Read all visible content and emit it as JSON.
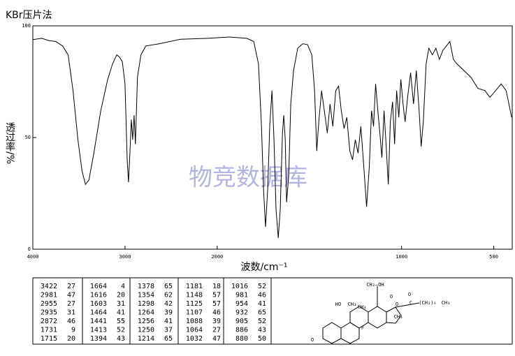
{
  "chart_data": {
    "type": "line",
    "title": "KBr压片法",
    "x_label": "波数/cm⁻¹",
    "y_label": "透过率/%",
    "watermark": "物竞数据库",
    "xlim": [
      4000,
      400
    ],
    "ylim": [
      0,
      100
    ],
    "xticks": [
      4000,
      3000,
      2000,
      1000,
      500
    ],
    "yticks": [
      0,
      50,
      100
    ],
    "x_scale_change": 2000,
    "color": "#000000",
    "x": [
      4000,
      3902,
      3827,
      3752,
      3677,
      3617,
      3564,
      3511,
      3466,
      3429,
      3391,
      3338,
      3263,
      3188,
      3135,
      3090,
      3060,
      3030,
      3000,
      2977,
      2962,
      2947,
      2932,
      2917,
      2902,
      2887,
      2865,
      2827,
      2774,
      2624,
      2398,
      2098,
      1935,
      1840,
      1802,
      1776,
      1760,
      1749,
      1738,
      1726,
      1715,
      1703,
      1692,
      1681,
      1669,
      1658,
      1646,
      1639,
      1631,
      1624,
      1612,
      1601,
      1586,
      1563,
      1536,
      1510,
      1487,
      1472,
      1460,
      1449,
      1434,
      1419,
      1403,
      1388,
      1373,
      1357,
      1342,
      1327,
      1312,
      1297,
      1281,
      1266,
      1251,
      1236,
      1221,
      1205,
      1190,
      1175,
      1163,
      1152,
      1141,
      1129,
      1118,
      1107,
      1095,
      1084,
      1072,
      1061,
      1049,
      1038,
      1027,
      1015,
      1004,
      992,
      981,
      966,
      951,
      935,
      920,
      905,
      894,
      882,
      867,
      852,
      833,
      814,
      795,
      776,
      757,
      738,
      719,
      700,
      662,
      624,
      586,
      548,
      521,
      490,
      460,
      433,
      403
    ],
    "values": [
      93.8,
      94.4,
      93.4,
      93,
      91,
      87,
      71,
      49,
      35,
      29,
      31,
      43,
      62,
      76,
      83,
      87,
      86,
      84,
      74,
      40,
      30,
      43,
      58,
      49,
      60,
      47,
      77,
      87,
      91,
      92,
      94,
      94.4,
      95,
      94.4,
      93,
      83,
      55,
      27,
      10,
      27,
      55,
      71,
      49,
      18,
      5,
      18,
      52,
      60,
      49,
      21,
      33,
      65,
      80,
      90,
      92,
      91.6,
      87,
      71,
      44,
      57,
      71,
      62,
      52,
      65,
      55,
      71,
      73,
      62,
      54,
      59,
      44,
      40,
      49,
      43,
      55,
      37,
      19,
      37,
      62,
      55,
      74,
      62,
      52,
      41,
      62,
      47,
      29,
      57,
      66,
      47,
      71,
      59,
      76,
      65,
      57,
      69,
      79,
      65,
      80,
      62,
      46,
      57,
      83,
      90,
      87,
      90,
      85,
      89,
      91,
      93,
      85,
      83,
      80,
      77,
      72,
      71,
      68,
      71,
      74,
      71,
      59
    ]
  },
  "peak_table": {
    "groups": [
      [
        [
          3422,
          27
        ],
        [
          2981,
          47
        ],
        [
          2955,
          27
        ],
        [
          2935,
          31
        ],
        [
          2872,
          46
        ],
        [
          1731,
          9
        ],
        [
          1715,
          20
        ]
      ],
      [
        [
          1664,
          4
        ],
        [
          1616,
          20
        ],
        [
          1603,
          31
        ],
        [
          1464,
          41
        ],
        [
          1441,
          55
        ],
        [
          1413,
          52
        ],
        [
          1394,
          43
        ]
      ],
      [
        [
          1378,
          65
        ],
        [
          1354,
          62
        ],
        [
          1298,
          42
        ],
        [
          1264,
          39
        ],
        [
          1256,
          41
        ],
        [
          1250,
          37
        ],
        [
          1214,
          65
        ]
      ],
      [
        [
          1181,
          18
        ],
        [
          1148,
          57
        ],
        [
          1125,
          57
        ],
        [
          1107,
          46
        ],
        [
          1088,
          39
        ],
        [
          1064,
          27
        ],
        [
          1032,
          47
        ]
      ],
      [
        [
          1016,
          52
        ],
        [
          981,
          46
        ],
        [
          954,
          41
        ],
        [
          932,
          65
        ],
        [
          905,
          52
        ],
        [
          886,
          43
        ],
        [
          880,
          50
        ]
      ]
    ]
  },
  "structure": {
    "labels": [
      "CH₂—OH",
      "O",
      "HO",
      "CH₃",
      "O",
      "O",
      "C",
      "(CH₂)₆",
      "CH₃",
      "CH₃",
      "F",
      "CH₃",
      "O"
    ]
  }
}
